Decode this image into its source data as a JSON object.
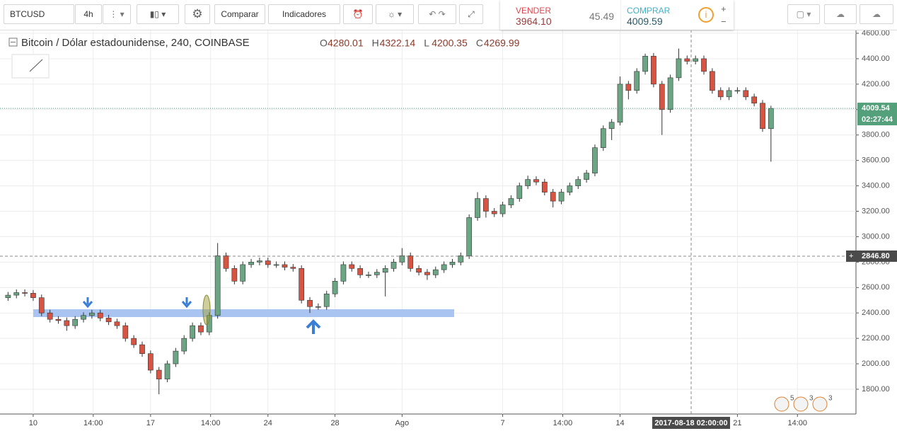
{
  "toolbar": {
    "symbol": "BTCUSD",
    "interval": "4h",
    "compare": "Comparar",
    "indicators": "Indicadores"
  },
  "trade_panel": {
    "sell_label": "VENDER",
    "sell_price": "3964.10",
    "spread": "45.49",
    "buy_label": "COMPRAR",
    "buy_price": "4009.59"
  },
  "badges": [
    "5",
    "3",
    "3"
  ],
  "chart_data": {
    "type": "candlestick",
    "title": "Bitcoin / Dólar estadounidense, 240, COINBASE",
    "legend": [
      {
        "label": "O",
        "value": 4280.01
      },
      {
        "label": "H",
        "value": 4322.14
      },
      {
        "label": "L",
        "value": 4200.35
      },
      {
        "label": "C",
        "value": 4269.99
      }
    ],
    "x": [
      -1.5,
      -1,
      -0.5,
      0,
      0.5,
      1,
      1.5,
      2,
      2.5,
      3,
      3.5,
      4,
      4.5,
      5,
      5.5,
      6,
      6.5,
      7,
      7.5,
      8,
      8.5,
      9,
      9.5,
      10,
      10.5,
      11,
      11.5,
      12,
      12.5,
      13,
      13.5,
      14,
      14.5,
      15,
      15.5,
      16,
      16.5,
      17,
      17.5,
      18,
      18.5,
      19,
      19.5,
      20,
      20.5,
      21,
      21.5,
      22,
      22.5,
      23,
      23.5,
      24,
      24.5,
      25,
      25.5,
      26,
      26.5,
      27,
      27.5,
      28,
      28.5,
      29,
      29.5,
      30,
      30.5,
      31,
      31.5,
      32,
      32.5,
      33,
      33.5,
      34,
      34.5,
      35,
      35.5,
      36,
      36.5,
      37,
      37.5,
      38,
      38.5,
      39,
      39.5,
      40,
      40.5,
      41,
      41.5,
      42,
      42.5,
      43,
      43.5,
      44
    ],
    "open": [
      2520,
      2540,
      2560,
      2555,
      2520,
      2400,
      2350,
      2340,
      2300,
      2350,
      2380,
      2400,
      2360,
      2330,
      2300,
      2200,
      2150,
      2080,
      1950,
      1880,
      2000,
      2100,
      2200,
      2300,
      2250,
      2380,
      2850,
      2750,
      2650,
      2780,
      2800,
      2810,
      2780,
      2780,
      2760,
      2750,
      2500,
      2450,
      2450,
      2550,
      2650,
      2780,
      2750,
      2700,
      2700,
      2720,
      2750,
      2800,
      2850,
      2750,
      2720,
      2700,
      2740,
      2780,
      2800,
      2850,
      3150,
      3300,
      3200,
      3180,
      3250,
      3300,
      3400,
      3450,
      3430,
      3350,
      3280,
      3350,
      3400,
      3450,
      3500,
      3700,
      3850,
      3900,
      4200,
      4150,
      4300,
      4420,
      4200,
      4000,
      4250,
      4400,
      4380,
      4400,
      4300,
      4150,
      4100,
      4150,
      4150,
      4100,
      4050,
      3850
    ],
    "high": [
      2565,
      2585,
      2585,
      2580,
      2545,
      2425,
      2375,
      2365,
      2375,
      2405,
      2425,
      2425,
      2385,
      2355,
      2325,
      2225,
      2175,
      2105,
      1975,
      2025,
      2125,
      2225,
      2325,
      2325,
      2405,
      2950,
      2875,
      2775,
      2805,
      2825,
      2835,
      2835,
      2805,
      2805,
      2785,
      2775,
      2525,
      2475,
      2575,
      2675,
      2805,
      2805,
      2775,
      2725,
      2745,
      2775,
      2825,
      2910,
      2875,
      2775,
      2745,
      2765,
      2805,
      2825,
      2875,
      3175,
      3350,
      3325,
      3225,
      3275,
      3325,
      3425,
      3480,
      3475,
      3455,
      3375,
      3375,
      3425,
      3475,
      3525,
      3725,
      3875,
      3925,
      4260,
      4225,
      4325,
      4440,
      4445,
      4225,
      4275,
      4480,
      4425,
      4425,
      4425,
      4325,
      4175,
      4175,
      4175,
      4175,
      4125,
      4075,
      4030
    ],
    "low": [
      2495,
      2515,
      2530,
      2495,
      2375,
      2325,
      2315,
      2260,
      2275,
      2325,
      2355,
      2335,
      2305,
      2275,
      2175,
      2125,
      2055,
      1925,
      1760,
      1855,
      1975,
      2075,
      2175,
      2225,
      2225,
      2355,
      2725,
      2625,
      2625,
      2755,
      2775,
      2755,
      2755,
      2735,
      2725,
      2475,
      2400,
      2425,
      2425,
      2525,
      2625,
      2725,
      2675,
      2675,
      2675,
      2530,
      2725,
      2775,
      2725,
      2695,
      2660,
      2675,
      2715,
      2755,
      2775,
      2825,
      3125,
      3150,
      3155,
      3155,
      3225,
      3275,
      3375,
      3405,
      3325,
      3230,
      3255,
      3325,
      3375,
      3425,
      3475,
      3675,
      3760,
      3875,
      4080,
      4125,
      4275,
      4175,
      3800,
      3975,
      4225,
      4355,
      4355,
      4275,
      4125,
      4075,
      4075,
      4125,
      4075,
      4025,
      3825,
      3590
    ],
    "close": [
      2540,
      2560,
      2555,
      2520,
      2400,
      2350,
      2340,
      2300,
      2350,
      2380,
      2400,
      2360,
      2330,
      2300,
      2200,
      2150,
      2080,
      1950,
      1880,
      2000,
      2100,
      2200,
      2300,
      2250,
      2380,
      2850,
      2750,
      2650,
      2780,
      2800,
      2810,
      2780,
      2780,
      2760,
      2750,
      2500,
      2450,
      2450,
      2550,
      2650,
      2780,
      2750,
      2700,
      2700,
      2720,
      2750,
      2800,
      2850,
      2750,
      2720,
      2700,
      2740,
      2780,
      2800,
      2850,
      3150,
      3300,
      3200,
      3180,
      3250,
      3300,
      3400,
      3450,
      3430,
      3350,
      3280,
      3350,
      3400,
      3450,
      3500,
      3700,
      3850,
      3900,
      4200,
      4150,
      4300,
      4420,
      4200,
      4000,
      4250,
      4400,
      4380,
      4400,
      4300,
      4150,
      4100,
      4150,
      4150,
      4100,
      4050,
      3850,
      4009.54
    ],
    "up_color": "#6ba583",
    "down_color": "#d75442",
    "wick_color": "#333333",
    "xlim": [
      -1.98,
      49.07
    ],
    "ylim": [
      1605,
      4628
    ],
    "xticks": [
      {
        "value": 0,
        "label": "10"
      },
      {
        "value": 3.58,
        "label": "14:00"
      },
      {
        "value": 7,
        "label": "17"
      },
      {
        "value": 10.58,
        "label": "14:00"
      },
      {
        "value": 14,
        "label": "24"
      },
      {
        "value": 18,
        "label": "28"
      },
      {
        "value": 22,
        "label": "Ago"
      },
      {
        "value": 28,
        "label": "7"
      },
      {
        "value": 31.58,
        "label": "14:00"
      },
      {
        "value": 35,
        "label": "14"
      },
      {
        "value": 42,
        "label": "21"
      },
      {
        "value": 45.58,
        "label": "14:00"
      }
    ],
    "yticks": [
      {
        "value": 1800,
        "label": "1800.00"
      },
      {
        "value": 2000,
        "label": "2000.00"
      },
      {
        "value": 2200,
        "label": "2200.00"
      },
      {
        "value": 2400,
        "label": "2400.00"
      },
      {
        "value": 2600,
        "label": "2600.00"
      },
      {
        "value": 2800,
        "label": "2800.00"
      },
      {
        "value": 3000,
        "label": "3000.00"
      },
      {
        "value": 3200,
        "label": "3200.00"
      },
      {
        "value": 3400,
        "label": "3400.00"
      },
      {
        "value": 3600,
        "label": "3600.00"
      },
      {
        "value": 3800,
        "label": "3800.00"
      },
      {
        "value": 4000,
        "label": "4000.00"
      },
      {
        "value": 4200,
        "label": "4200.00"
      },
      {
        "value": 4400,
        "label": "4400.00"
      },
      {
        "value": 4600,
        "label": "4600.00"
      }
    ],
    "grid": true,
    "last_price": 4009.54,
    "countdown": "02:27:44",
    "crosshair_price": {
      "value": 2846.8,
      "label": "2846.80"
    },
    "crosshair_time": "2017-08-18 02:00:00"
  }
}
